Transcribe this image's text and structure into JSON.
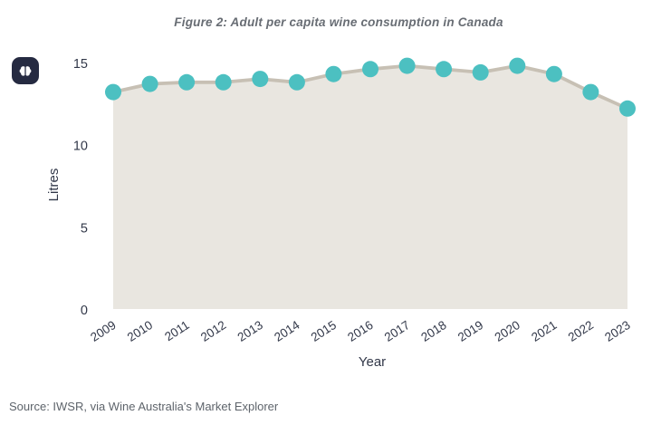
{
  "figure": {
    "title": "Figure 2: Adult per capita wine consumption in Canada",
    "source_note": "Source: IWSR, via Wine Australia's Market Explorer"
  },
  "icon": {
    "name": "brain-icon",
    "background": "#252a41",
    "glyph_color": "#ffffff"
  },
  "chart_data": {
    "type": "area",
    "title": "Figure 2: Adult per capita wine consumption in Canada",
    "x": [
      2009,
      2010,
      2011,
      2012,
      2013,
      2014,
      2015,
      2016,
      2017,
      2018,
      2019,
      2020,
      2021,
      2022,
      2023
    ],
    "series": [
      {
        "name": "Adult per capita wine consumption (litres)",
        "values": [
          13.2,
          13.7,
          13.8,
          13.8,
          14.0,
          13.8,
          14.3,
          14.6,
          14.8,
          14.6,
          14.4,
          14.8,
          14.3,
          13.2,
          12.2
        ]
      }
    ],
    "xlabel": "Year",
    "ylabel": "Litres",
    "ylim": [
      0,
      15
    ],
    "yticks": [
      0,
      5,
      10,
      15
    ],
    "x_tick_rotation_deg": -33,
    "grid": false,
    "legend": "none",
    "marker_radius": 9,
    "line_width": 3.8,
    "colors": {
      "area_fill": "#e9e6e0",
      "line": "#c7c0b4",
      "marker": "#4cc0c1",
      "axis_text": "#323849",
      "title_text": "#686d74",
      "source_text": "#5e646b",
      "icon_bg": "#252a41"
    }
  }
}
